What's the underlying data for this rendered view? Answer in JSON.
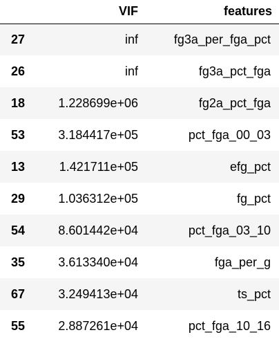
{
  "table": {
    "columns": [
      "",
      "VIF",
      "features"
    ],
    "rows": [
      {
        "index": "27",
        "vif": "inf",
        "feature": "fg3a_per_fga_pct"
      },
      {
        "index": "26",
        "vif": "inf",
        "feature": "fg3a_pct_fga"
      },
      {
        "index": "18",
        "vif": "1.228699e+06",
        "feature": "fg2a_pct_fga"
      },
      {
        "index": "53",
        "vif": "3.184417e+05",
        "feature": "pct_fga_00_03"
      },
      {
        "index": "13",
        "vif": "1.421711e+05",
        "feature": "efg_pct"
      },
      {
        "index": "29",
        "vif": "1.036312e+05",
        "feature": "fg_pct"
      },
      {
        "index": "54",
        "vif": "8.601442e+04",
        "feature": "pct_fga_03_10"
      },
      {
        "index": "35",
        "vif": "3.613340e+04",
        "feature": "fga_per_g"
      },
      {
        "index": "67",
        "vif": "3.249413e+04",
        "feature": "ts_pct"
      },
      {
        "index": "55",
        "vif": "2.887261e+04",
        "feature": "pct_fga_10_16"
      }
    ]
  },
  "colors": {
    "stripe": "#f5f5f5",
    "background": "#ffffff",
    "text": "#000000"
  }
}
